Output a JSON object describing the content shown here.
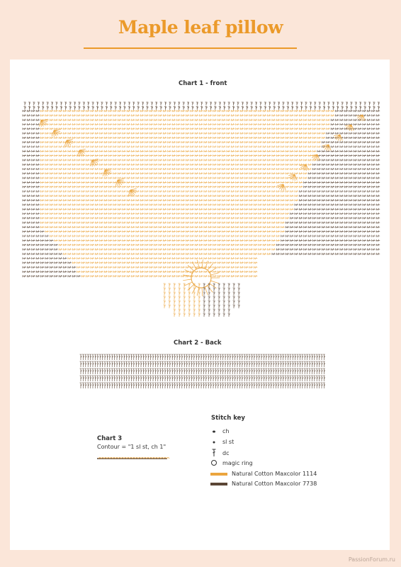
{
  "title": "Maple leaf pillow",
  "chart1": {
    "title": "Chart 1 - front"
  },
  "chart2": {
    "title": "Chart 2 - Back"
  },
  "chart3": {
    "title": "Chart 3",
    "contour": "Contour = \"1 sl st, ch 1\""
  },
  "stitch_key": {
    "title": "Stitch key",
    "items": [
      {
        "label": "ch",
        "icon": "oval-dot-icon"
      },
      {
        "label": "sl st",
        "icon": "dot-icon"
      },
      {
        "label": "dc",
        "icon": "double-crochet-icon"
      },
      {
        "label": "magic ring",
        "icon": "ring-icon"
      }
    ],
    "yarns": [
      {
        "label": "Natural Cotton Maxcolor 1114",
        "color": "#eba53e"
      },
      {
        "label": "Natural Cotton Maxcolor 7738",
        "color": "#5b4636"
      }
    ]
  },
  "watermark": "PassionForum.ru",
  "colors": {
    "accent": "#eb9a2a",
    "yarn_light": "#eba53e",
    "yarn_dark": "#5b4636",
    "background": "#fbe6d9"
  }
}
